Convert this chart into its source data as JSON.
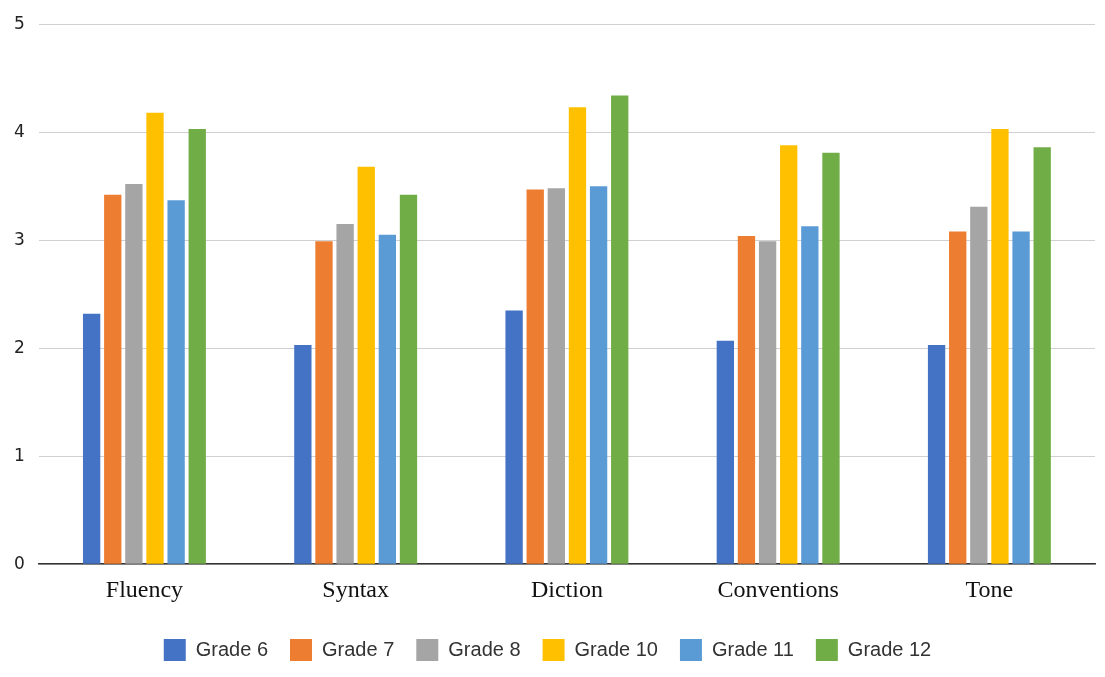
{
  "chart_data": {
    "type": "bar",
    "categories": [
      "Fluency",
      "Syntax",
      "Diction",
      "Conventions",
      "Tone"
    ],
    "series": [
      {
        "name": "Grade 6",
        "color": "#4472c4",
        "values": [
          2.32,
          2.03,
          2.35,
          2.07,
          2.03
        ]
      },
      {
        "name": "Grade 7",
        "color": "#ed7d31",
        "values": [
          3.42,
          2.99,
          3.47,
          3.04,
          3.08
        ]
      },
      {
        "name": "Grade 8",
        "color": "#a5a5a5",
        "values": [
          3.52,
          3.15,
          3.48,
          2.99,
          3.31
        ]
      },
      {
        "name": "Grade 10",
        "color": "#ffc000",
        "values": [
          4.18,
          3.68,
          4.23,
          3.88,
          4.03
        ]
      },
      {
        "name": "Grade 11",
        "color": "#5b9bd5",
        "values": [
          3.37,
          3.05,
          3.5,
          3.13,
          3.08
        ]
      },
      {
        "name": "Grade 12",
        "color": "#70ad47",
        "values": [
          4.03,
          3.42,
          4.34,
          3.81,
          3.86
        ]
      }
    ],
    "ylim": [
      0,
      5
    ],
    "yticks": [
      0,
      1,
      2,
      3,
      4,
      5
    ],
    "grid": "y",
    "legend": "bottom"
  }
}
